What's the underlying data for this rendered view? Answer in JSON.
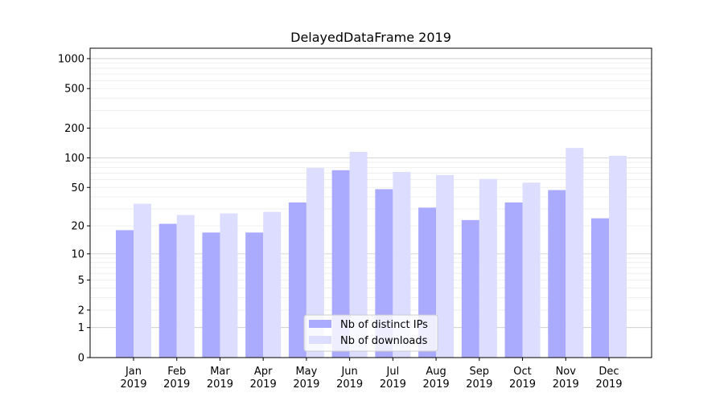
{
  "chart_data": {
    "type": "bar",
    "title": "DelayedDataFrame 2019",
    "xlabel": "",
    "ylabel": "",
    "yscale": "log(1+y)",
    "ylim": [
      0,
      1250
    ],
    "yticks": [
      0,
      1,
      2,
      5,
      10,
      20,
      50,
      100,
      200,
      500,
      1000
    ],
    "grid": true,
    "legend_position": "lower-center",
    "categories": [
      "Jan\n2019",
      "Feb\n2019",
      "Mar\n2019",
      "Apr\n2019",
      "May\n2019",
      "Jun\n2019",
      "Jul\n2019",
      "Aug\n2019",
      "Sep\n2019",
      "Oct\n2019",
      "Nov\n2019",
      "Dec\n2019"
    ],
    "series": [
      {
        "name": "Nb of distinct IPs",
        "color": "#aaaaff",
        "values": [
          18,
          21,
          17,
          17,
          35,
          75,
          48,
          31,
          23,
          35,
          47,
          24
        ]
      },
      {
        "name": "Nb of downloads",
        "color": "#ddddff",
        "values": [
          34,
          26,
          27,
          28,
          79,
          115,
          72,
          67,
          61,
          56,
          126,
          105
        ]
      }
    ]
  }
}
